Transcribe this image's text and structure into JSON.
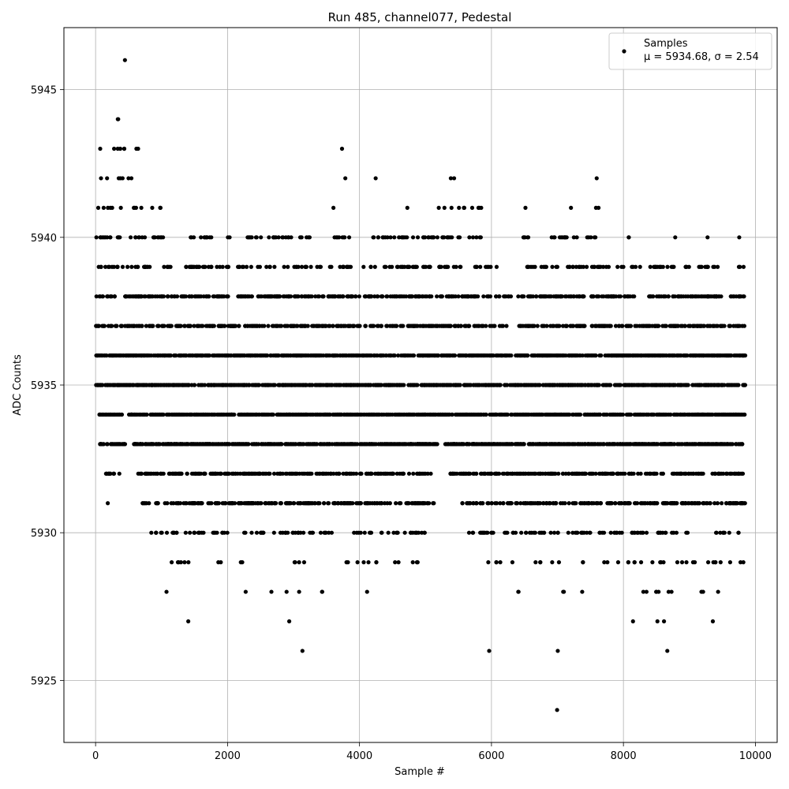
{
  "chart_data": {
    "type": "scatter",
    "title": "Run 485, channel077, Pedestal",
    "xlabel": "Sample #",
    "ylabel": "ADC Counts",
    "xlim": [
      -480,
      10330
    ],
    "ylim": [
      5922.9,
      5947.1
    ],
    "xticks": [
      0,
      2000,
      4000,
      6000,
      8000,
      10000
    ],
    "xtick_labels": [
      "0",
      "2000",
      "4000",
      "6000",
      "8000",
      "10000"
    ],
    "yticks": [
      5925,
      5930,
      5935,
      5940,
      5945
    ],
    "ytick_labels": [
      "5925",
      "5930",
      "5935",
      "5940",
      "5945"
    ],
    "grid": true,
    "legend": {
      "placement": "top-right",
      "label": "Samples",
      "stats_text": "μ = 5934.68, σ = 2.54"
    },
    "marker_color": "#000000",
    "series": [
      {
        "name": "Samples",
        "level_bands": [
          {
            "y": 5946,
            "ranges": [
              [
                440,
                450
              ]
            ]
          },
          {
            "y": 5944,
            "ranges": [
              [
                320,
                350
              ]
            ]
          },
          {
            "y": 5943,
            "ranges": [
              [
                30,
                500
              ],
              [
                600,
                650
              ],
              [
                3730,
                3740
              ]
            ]
          },
          {
            "y": 5942,
            "ranges": [
              [
                40,
                650
              ],
              [
                3780,
                3790
              ],
              [
                4240,
                4250
              ],
              [
                5300,
                5500
              ],
              [
                7590,
                7600
              ]
            ]
          },
          {
            "y": 5941,
            "ranges": [
              [
                0,
                900
              ],
              [
                960,
                1000
              ],
              [
                3600,
                3610
              ],
              [
                4720,
                4730
              ],
              [
                5100,
                5900
              ],
              [
                6510,
                6520
              ],
              [
                7200,
                7210
              ],
              [
                7570,
                7700
              ]
            ]
          },
          {
            "y": 5940,
            "ranges": [
              [
                0,
                1100
              ],
              [
                1350,
                1800
              ],
              [
                2000,
                2050
              ],
              [
                2300,
                3300
              ],
              [
                3600,
                3900
              ],
              [
                4200,
                5900
              ],
              [
                6400,
                6600
              ],
              [
                6800,
                7300
              ],
              [
                7450,
                7650
              ],
              [
                8050,
                8100
              ],
              [
                8780,
                8790
              ],
              [
                9270,
                9280
              ],
              [
                9750,
                9760
              ]
            ]
          },
          {
            "y": 5939,
            "ranges": [
              [
                0,
                1200
              ],
              [
                1350,
                3600
              ],
              [
                3700,
                6100
              ],
              [
                6450,
                7800
              ],
              [
                7900,
                8000
              ],
              [
                8100,
                8800
              ],
              [
                8900,
                9450
              ],
              [
                9750,
                9850
              ]
            ]
          },
          {
            "y": 5938,
            "ranges": [
              [
                0,
                1250
              ],
              [
                1300,
                2050
              ],
              [
                2150,
                6300
              ],
              [
                6350,
                7400
              ],
              [
                7500,
                8200
              ],
              [
                8300,
                9500
              ],
              [
                9600,
                9850
              ]
            ]
          },
          {
            "y": 5937,
            "ranges": [
              [
                0,
                1300
              ],
              [
                1300,
                6250
              ],
              [
                6400,
                9850
              ]
            ]
          },
          {
            "y": 5936,
            "ranges": [
              [
                0,
                9850
              ]
            ]
          },
          {
            "y": 5935,
            "ranges": [
              [
                0,
                9850
              ]
            ]
          },
          {
            "y": 5934,
            "ranges": [
              [
                50,
                400
              ],
              [
                500,
                9850
              ]
            ]
          },
          {
            "y": 5933,
            "ranges": [
              [
                60,
                450
              ],
              [
                550,
                5200
              ],
              [
                5300,
                9850
              ]
            ]
          },
          {
            "y": 5932,
            "ranges": [
              [
                150,
                400
              ],
              [
                600,
                5100
              ],
              [
                5300,
                9850
              ]
            ]
          },
          {
            "y": 5931,
            "ranges": [
              [
                180,
                190
              ],
              [
                700,
                4550
              ],
              [
                4600,
                5150
              ],
              [
                5550,
                9850
              ]
            ]
          },
          {
            "y": 5930,
            "ranges": [
              [
                740,
                1250
              ],
              [
                1350,
                2050
              ],
              [
                2200,
                3300
              ],
              [
                3350,
                3600
              ],
              [
                3900,
                4200
              ],
              [
                4300,
                5000
              ],
              [
                5600,
                6900
              ],
              [
                6950,
                8000
              ],
              [
                8100,
                9000
              ],
              [
                9400,
                9750
              ]
            ]
          },
          {
            "y": 5929,
            "ranges": [
              [
                1050,
                1550
              ],
              [
                1850,
                2000
              ],
              [
                2200,
                2230
              ],
              [
                2960,
                3300
              ],
              [
                3800,
                4400
              ],
              [
                4500,
                4900
              ],
              [
                5950,
                6400
              ],
              [
                6650,
                7100
              ],
              [
                7350,
                7400
              ],
              [
                7700,
                8700
              ],
              [
                8800,
                9850
              ]
            ]
          },
          {
            "y": 5928,
            "ranges": [
              [
                1070,
                1080
              ],
              [
                2270,
                2280
              ],
              [
                2660,
                2670
              ],
              [
                2890,
                2900
              ],
              [
                3080,
                3090
              ],
              [
                3420,
                3450
              ],
              [
                4110,
                4120
              ],
              [
                6320,
                6420
              ],
              [
                6980,
                7100
              ],
              [
                7370,
                7380
              ],
              [
                8230,
                8350
              ],
              [
                8450,
                8900
              ],
              [
                9170,
                9250
              ],
              [
                9430,
                9440
              ]
            ]
          },
          {
            "y": 5927,
            "ranges": [
              [
                1400,
                1410
              ],
              [
                2930,
                2940
              ],
              [
                8140,
                8150
              ],
              [
                8510,
                8520
              ],
              [
                8610,
                8620
              ],
              [
                9350,
                9360
              ]
            ]
          },
          {
            "y": 5926,
            "ranges": [
              [
                3130,
                3140
              ],
              [
                5960,
                5970
              ],
              [
                7000,
                7010
              ],
              [
                8660,
                8670
              ]
            ]
          },
          {
            "y": 5924,
            "ranges": [
              [
                6990,
                7000
              ]
            ]
          }
        ]
      }
    ]
  }
}
